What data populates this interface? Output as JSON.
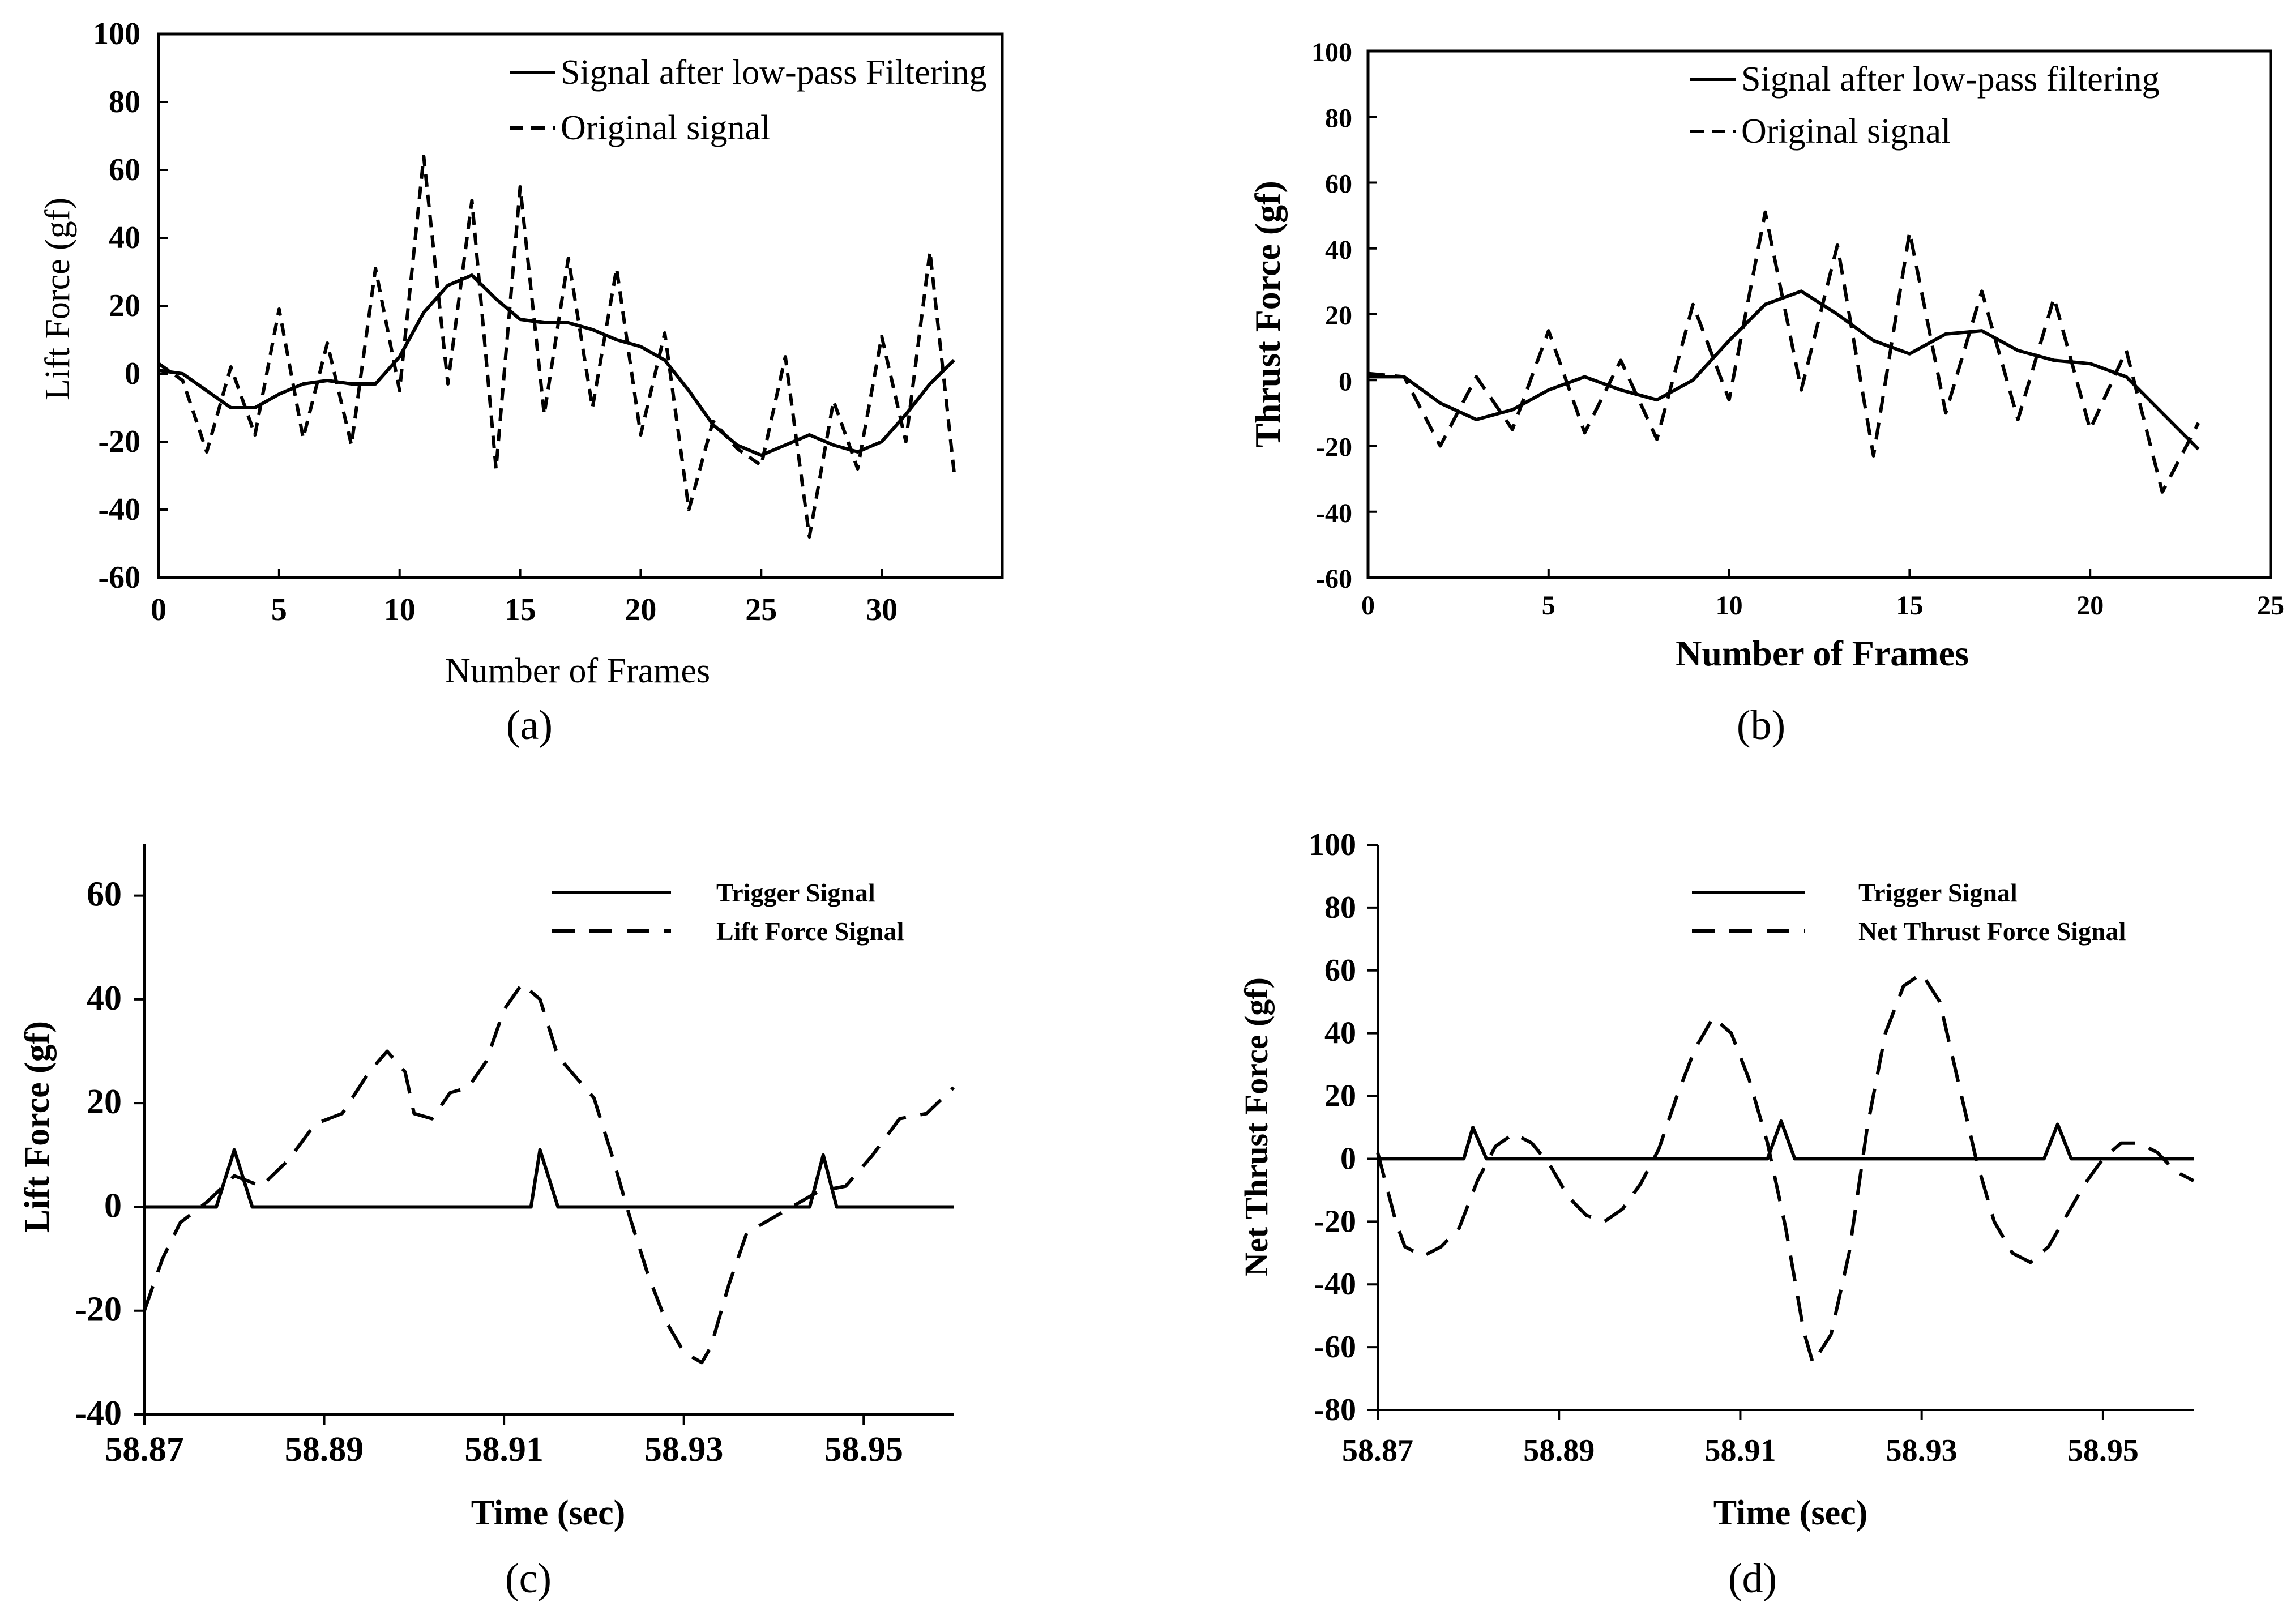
{
  "chart_data": [
    {
      "panel": "a",
      "type": "line",
      "caption": "(a)",
      "xlabel": "Number of Frames",
      "ylabel": "Lift Force (gf)",
      "xlim": [
        0,
        35
      ],
      "ylim": [
        -60,
        100
      ],
      "xticks": [
        0,
        5,
        10,
        15,
        20,
        25,
        30
      ],
      "yticks": [
        -60,
        -40,
        -20,
        0,
        20,
        40,
        60,
        80,
        100
      ],
      "legend_position": "top-right",
      "series": [
        {
          "name": "Signal after low-pass Filtering",
          "style": "solid",
          "x": [
            0,
            1,
            2,
            3,
            4,
            5,
            6,
            7,
            8,
            9,
            10,
            11,
            12,
            13,
            14,
            15,
            16,
            17,
            18,
            19,
            20,
            21,
            22,
            23,
            24,
            25,
            26,
            27,
            28,
            29,
            30,
            31,
            32,
            33
          ],
          "y": [
            1,
            0,
            -5,
            -10,
            -10,
            -6,
            -3,
            -2,
            -3,
            -3,
            5,
            18,
            26,
            29,
            22,
            16,
            15,
            15,
            13,
            10,
            8,
            4,
            -5,
            -15,
            -21,
            -24,
            -21,
            -18,
            -21,
            -23,
            -20,
            -12,
            -3,
            4
          ]
        },
        {
          "name": "Original signal",
          "style": "dashed",
          "x": [
            0,
            1,
            2,
            3,
            4,
            5,
            6,
            7,
            8,
            9,
            10,
            11,
            12,
            13,
            14,
            15,
            16,
            17,
            18,
            19,
            20,
            21,
            22,
            23,
            24,
            25,
            26,
            27,
            28,
            29,
            30,
            31,
            32,
            33
          ],
          "y": [
            3,
            -2,
            -23,
            2,
            -18,
            19,
            -19,
            9,
            -21,
            31,
            -5,
            64,
            -3,
            51,
            -28,
            55,
            -12,
            34,
            -10,
            31,
            -18,
            12,
            -40,
            -14,
            -22,
            -27,
            5,
            -48,
            -8,
            -28,
            11,
            -20,
            36,
            -29
          ]
        }
      ]
    },
    {
      "panel": "b",
      "type": "line",
      "caption": "(b)",
      "xlabel": "Number of Frames",
      "ylabel": "Thrust Force (gf)",
      "xlim": [
        0,
        25
      ],
      "ylim": [
        -60,
        100
      ],
      "xticks": [
        0,
        5,
        10,
        15,
        20,
        25
      ],
      "yticks": [
        -60,
        -40,
        -20,
        0,
        20,
        40,
        60,
        80,
        100
      ],
      "legend_position": "top-right",
      "series": [
        {
          "name": "Signal after low-pass filtering",
          "style": "solid",
          "x": [
            0,
            1,
            2,
            3,
            4,
            5,
            6,
            7,
            8,
            9,
            10,
            11,
            12,
            13,
            14,
            15,
            16,
            17,
            18,
            19,
            20,
            21,
            22,
            23
          ],
          "y": [
            1,
            1,
            -7,
            -12,
            -9,
            -3,
            1,
            -3,
            -6,
            0,
            12,
            23,
            27,
            20,
            12,
            8,
            14,
            15,
            9,
            6,
            5,
            1,
            -10,
            -21
          ]
        },
        {
          "name": "Original signal",
          "style": "dashed",
          "x": [
            0,
            1,
            2,
            3,
            4,
            5,
            6,
            7,
            8,
            9,
            10,
            11,
            12,
            13,
            14,
            15,
            16,
            17,
            18,
            19,
            20,
            21,
            22,
            23
          ],
          "y": [
            2,
            1,
            -20,
            1,
            -15,
            15,
            -16,
            6,
            -18,
            23,
            -6,
            51,
            -3,
            41,
            -23,
            45,
            -10,
            27,
            -12,
            25,
            -15,
            9,
            -34,
            -13
          ]
        }
      ]
    },
    {
      "panel": "c",
      "type": "line",
      "caption": "(c)",
      "xlabel": "Time (sec)",
      "ylabel": "Lift Force (gf)",
      "xlim": [
        58.87,
        58.96
      ],
      "ylim": [
        -40,
        70
      ],
      "xticks": [
        "58.87",
        "58.89",
        "58.91",
        "58.93",
        "58.95"
      ],
      "yticks": [
        -40,
        -20,
        0,
        20,
        40,
        60
      ],
      "legend_position": "top-right",
      "series": [
        {
          "name": "Trigger Signal",
          "style": "solid",
          "x": [
            58.87,
            58.878,
            58.88,
            58.882,
            58.913,
            58.914,
            58.916,
            58.944,
            58.9455,
            58.947,
            58.96
          ],
          "y": [
            0,
            0,
            11,
            0,
            0,
            11,
            0,
            0,
            10,
            0,
            0
          ]
        },
        {
          "name": "Lift Force Signal",
          "style": "dashed",
          "x": [
            58.87,
            58.872,
            58.874,
            58.877,
            58.88,
            58.883,
            58.886,
            58.889,
            58.892,
            58.895,
            58.897,
            58.899,
            58.9,
            58.902,
            58.904,
            58.906,
            58.908,
            58.91,
            58.912,
            58.914,
            58.916,
            58.918,
            58.92,
            58.922,
            58.924,
            58.926,
            58.928,
            58.93,
            58.932,
            58.933,
            58.935,
            58.937,
            58.939,
            58.942,
            58.945,
            58.948,
            58.951,
            58.954,
            58.957,
            58.96
          ],
          "y": [
            -20,
            -10,
            -3,
            1,
            6,
            4,
            9,
            16,
            18,
            26,
            30,
            26,
            18,
            17,
            22,
            23,
            28,
            38,
            43,
            40,
            29,
            25,
            21,
            10,
            -2,
            -13,
            -22,
            -28,
            -30,
            -27,
            -15,
            -5,
            -3,
            0,
            3,
            4,
            10,
            17,
            18,
            23
          ]
        }
      ]
    },
    {
      "panel": "d",
      "type": "line",
      "caption": "(d)",
      "xlabel": "Time (sec)",
      "ylabel": "Net Thrust Force (gf)",
      "xlim": [
        58.87,
        58.96
      ],
      "ylim": [
        -80,
        100
      ],
      "xticks": [
        "58.87",
        "58.89",
        "58.91",
        "58.93",
        "58.95"
      ],
      "yticks": [
        -80,
        -60,
        -40,
        -20,
        0,
        20,
        40,
        60,
        80,
        100
      ],
      "legend_position": "top-right",
      "series": [
        {
          "name": "Trigger Signal",
          "style": "solid",
          "x": [
            58.87,
            58.8795,
            58.8805,
            58.882,
            58.913,
            58.9145,
            58.916,
            58.9435,
            58.945,
            58.9465,
            58.96
          ],
          "y": [
            0,
            0,
            10,
            0,
            0,
            12,
            0,
            0,
            11,
            0,
            0
          ]
        },
        {
          "name": "Net Thrust Force Signal",
          "style": "dashed",
          "x": [
            58.87,
            58.872,
            58.873,
            58.875,
            58.877,
            58.879,
            58.881,
            58.883,
            58.885,
            58.887,
            58.889,
            58.891,
            58.893,
            58.895,
            58.897,
            58.899,
            58.901,
            58.903,
            58.905,
            58.907,
            58.909,
            58.911,
            58.913,
            58.915,
            58.917,
            58.918,
            58.92,
            58.922,
            58.924,
            58.926,
            58.928,
            58.93,
            58.932,
            58.934,
            58.936,
            58.938,
            58.94,
            58.942,
            58.944,
            58.946,
            58.948,
            58.95,
            58.952,
            58.954,
            58.956,
            58.958,
            58.96
          ],
          "y": [
            2,
            -20,
            -28,
            -31,
            -28,
            -22,
            -7,
            4,
            8,
            5,
            -2,
            -12,
            -18,
            -20,
            -16,
            -8,
            3,
            20,
            35,
            45,
            40,
            25,
            5,
            -22,
            -55,
            -65,
            -56,
            -30,
            10,
            40,
            55,
            59,
            50,
            25,
            0,
            -20,
            -30,
            -33,
            -28,
            -18,
            -8,
            0,
            5,
            5,
            2,
            -4,
            -7
          ]
        }
      ]
    }
  ]
}
